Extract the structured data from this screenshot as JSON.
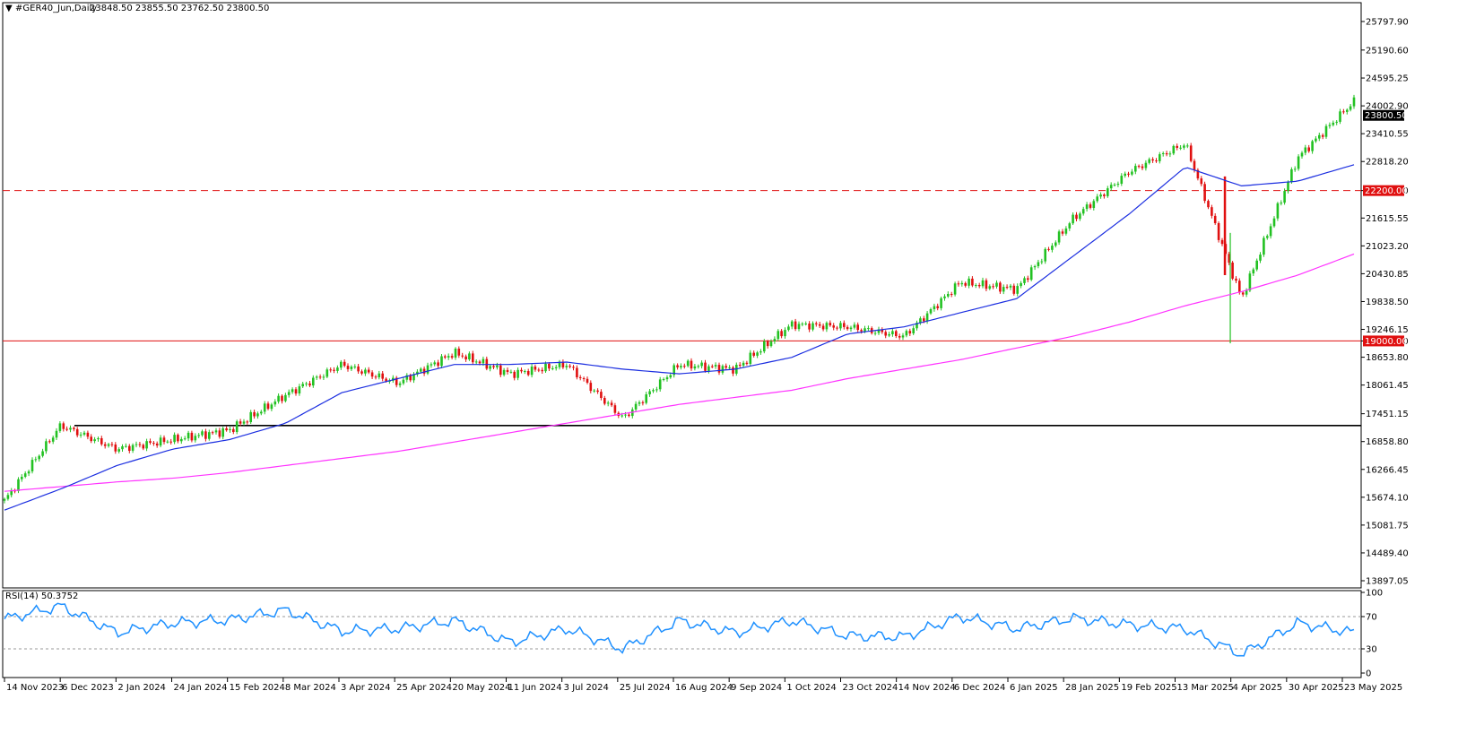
{
  "header": {
    "symbol": "#GER40_Jun,Daily",
    "ohlc": "23848.50 23855.50 23762.50 23800.50"
  },
  "rsi_panel": {
    "label": "RSI(14) 50.3752",
    "levels": [
      "100",
      "70",
      "30",
      "0"
    ]
  },
  "price_axis": {
    "ticks": [
      "25797.90",
      "25190.60",
      "24595.25",
      "24002.90",
      "23410.55",
      "22818.20",
      "22200.00",
      "21615.55",
      "21023.20",
      "20430.85",
      "19838.50",
      "19246.15",
      "19000.00",
      "18653.80",
      "18061.45",
      "17451.15",
      "16858.80",
      "16266.45",
      "15674.10",
      "15081.75",
      "14489.40",
      "13897.05"
    ]
  },
  "price_tags": {
    "current": "23800.50",
    "level_upper": "22200.00",
    "level_lower": "19000.00"
  },
  "colors": {
    "bull": "#22c122",
    "bear": "#e01010",
    "ma_fast": "#1b2ee0",
    "ma_slow": "#ff33ff",
    "rsi": "#1e90ff",
    "level": "#e01010",
    "support": "#000000"
  },
  "time_axis": [
    "14 Nov 2023",
    "6 Dec 2023",
    "2 Jan 2024",
    "24 Jan 2024",
    "15 Feb 2024",
    "8 Mar 2024",
    "3 Apr 2024",
    "25 Apr 2024",
    "20 May 2024",
    "11 Jun 2024",
    "3 Jul 2024",
    "25 Jul 2024",
    "16 Aug 2024",
    "9 Sep 2024",
    "1 Oct 2024",
    "23 Oct 2024",
    "14 Nov 2024",
    "6 Dec 2024",
    "6 Jan 2025",
    "28 Jan 2025",
    "19 Feb 2025",
    "13 Mar 2025",
    "4 Apr 2025",
    "30 Apr 2025",
    "23 May 2025"
  ],
  "chart_data": {
    "type": "candlestick",
    "symbol": "#GER40_Jun",
    "timeframe": "Daily",
    "last_bar": {
      "open": 23848.5,
      "high": 23855.5,
      "low": 23762.5,
      "close": 23800.5
    },
    "ylim": [
      13897.05,
      26100
    ],
    "horizontal_levels": [
      {
        "value": 22200.0,
        "style": "dashed",
        "color": "#e01010"
      },
      {
        "value": 19000.0,
        "style": "solid",
        "color": "#e01010"
      },
      {
        "value": 17200,
        "style": "solid",
        "color": "#000000"
      }
    ],
    "close_path": [
      [
        "14 Nov 2023",
        15600
      ],
      [
        "6 Dec 2023",
        17200
      ],
      [
        "2 Jan 2024",
        16700
      ],
      [
        "24 Jan 2024",
        16900
      ],
      [
        "15 Feb 2024",
        17100
      ],
      [
        "8 Mar 2024",
        17850
      ],
      [
        "3 Apr 2024",
        18500
      ],
      [
        "25 Apr 2024",
        18100
      ],
      [
        "20 May 2024",
        18750
      ],
      [
        "11 Jun 2024",
        18300
      ],
      [
        "3 Jul 2024",
        18500
      ],
      [
        "25 Jul 2024",
        17350
      ],
      [
        "16 Aug 2024",
        18500
      ],
      [
        "9 Sep 2024",
        18400
      ],
      [
        "1 Oct 2024",
        19350
      ],
      [
        "23 Oct 2024",
        19300
      ],
      [
        "14 Nov 2024",
        19100
      ],
      [
        "6 Dec 2024",
        20250
      ],
      [
        "6 Jan 2025",
        20100
      ],
      [
        "28 Jan 2025",
        21600
      ],
      [
        "19 Feb 2025",
        22600
      ],
      [
        "13 Mar 2025",
        23200
      ],
      [
        "4 Apr 2025",
        19900
      ],
      [
        "30 Apr 2025",
        22900
      ],
      [
        "23 May 2025",
        24100
      ]
    ],
    "ma_fast_path": [
      [
        "14 Nov 2023",
        15400
      ],
      [
        "6 Dec 2023",
        15850
      ],
      [
        "2 Jan 2024",
        16350
      ],
      [
        "24 Jan 2024",
        16700
      ],
      [
        "15 Feb 2024",
        16900
      ],
      [
        "8 Mar 2024",
        17250
      ],
      [
        "3 Apr 2024",
        17900
      ],
      [
        "25 Apr 2024",
        18200
      ],
      [
        "20 May 2024",
        18500
      ],
      [
        "11 Jun 2024",
        18500
      ],
      [
        "3 Jul 2024",
        18550
      ],
      [
        "25 Jul 2024",
        18400
      ],
      [
        "16 Aug 2024",
        18300
      ],
      [
        "9 Sep 2024",
        18400
      ],
      [
        "1 Oct 2024",
        18650
      ],
      [
        "23 Oct 2024",
        19150
      ],
      [
        "14 Nov 2024",
        19300
      ],
      [
        "6 Dec 2024",
        19600
      ],
      [
        "6 Jan 2025",
        19900
      ],
      [
        "28 Jan 2025",
        20800
      ],
      [
        "19 Feb 2025",
        21700
      ],
      [
        "13 Mar 2025",
        22700
      ],
      [
        "4 Apr 2025",
        22300
      ],
      [
        "30 Apr 2025",
        22400
      ],
      [
        "23 May 2025",
        22750
      ]
    ],
    "ma_slow_path": [
      [
        "14 Nov 2023",
        15800
      ],
      [
        "6 Dec 2023",
        15900
      ],
      [
        "2 Jan 2024",
        16000
      ],
      [
        "24 Jan 2024",
        16080
      ],
      [
        "15 Feb 2024",
        16200
      ],
      [
        "8 Mar 2024",
        16350
      ],
      [
        "3 Apr 2024",
        16500
      ],
      [
        "25 Apr 2024",
        16650
      ],
      [
        "20 May 2024",
        16850
      ],
      [
        "11 Jun 2024",
        17050
      ],
      [
        "3 Jul 2024",
        17250
      ],
      [
        "25 Jul 2024",
        17450
      ],
      [
        "16 Aug 2024",
        17650
      ],
      [
        "9 Sep 2024",
        17800
      ],
      [
        "1 Oct 2024",
        17950
      ],
      [
        "23 Oct 2024",
        18200
      ],
      [
        "14 Nov 2024",
        18400
      ],
      [
        "6 Dec 2024",
        18600
      ],
      [
        "6 Jan 2025",
        18850
      ],
      [
        "28 Jan 2025",
        19100
      ],
      [
        "19 Feb 2025",
        19400
      ],
      [
        "13 Mar 2025",
        19750
      ],
      [
        "4 Apr 2025",
        20050
      ],
      [
        "30 Apr 2025",
        20400
      ],
      [
        "23 May 2025",
        20850
      ]
    ],
    "rsi_path": [
      [
        "14 Nov 2023",
        67
      ],
      [
        "6 Dec 2023",
        83
      ],
      [
        "2 Jan 2024",
        50
      ],
      [
        "24 Jan 2024",
        62
      ],
      [
        "15 Feb 2024",
        66
      ],
      [
        "8 Mar 2024",
        78
      ],
      [
        "3 Apr 2024",
        52
      ],
      [
        "25 Apr 2024",
        55
      ],
      [
        "20 May 2024",
        65
      ],
      [
        "11 Jun 2024",
        38
      ],
      [
        "3 Jul 2024",
        55
      ],
      [
        "25 Jul 2024",
        30
      ],
      [
        "16 Aug 2024",
        65
      ],
      [
        "9 Sep 2024",
        50
      ],
      [
        "1 Oct 2024",
        65
      ],
      [
        "23 Oct 2024",
        46
      ],
      [
        "14 Nov 2024",
        45
      ],
      [
        "6 Dec 2024",
        70
      ],
      [
        "6 Jan 2025",
        55
      ],
      [
        "28 Jan 2025",
        68
      ],
      [
        "19 Feb 2025",
        60
      ],
      [
        "13 Mar 2025",
        55
      ],
      [
        "4 Apr 2025",
        23
      ],
      [
        "30 Apr 2025",
        62
      ],
      [
        "23 May 2025",
        50
      ]
    ],
    "rsi_levels": [
      70,
      30
    ]
  }
}
